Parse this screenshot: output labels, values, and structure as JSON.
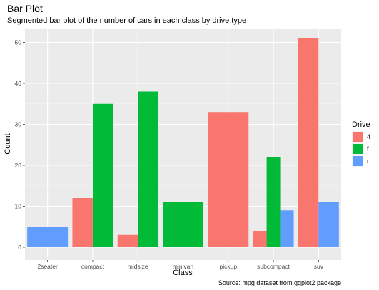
{
  "chart_data": {
    "type": "bar",
    "title": "Bar Plot",
    "subtitle": "Segmented bar plot of the number of cars in each class by drive type",
    "xlabel": "Class",
    "ylabel": "Count",
    "caption": "Source: mpg dataset from ggplot2 package",
    "categories": [
      "2seater",
      "compact",
      "midsize",
      "minivan",
      "pickup",
      "subcompact",
      "suv"
    ],
    "ylim": [
      0,
      53
    ],
    "yticks": [
      0,
      10,
      20,
      30,
      40,
      50
    ],
    "grid": true,
    "legend": {
      "title": "Drive",
      "position": "right"
    },
    "series": [
      {
        "name": "4",
        "color": "#F8766D",
        "values": [
          0,
          12,
          3,
          0,
          33,
          4,
          51
        ]
      },
      {
        "name": "f",
        "color": "#00BA38",
        "values": [
          0,
          35,
          38,
          11,
          0,
          22,
          0
        ]
      },
      {
        "name": "r",
        "color": "#619CFF",
        "values": [
          5,
          0,
          0,
          0,
          0,
          9,
          11
        ]
      }
    ]
  }
}
